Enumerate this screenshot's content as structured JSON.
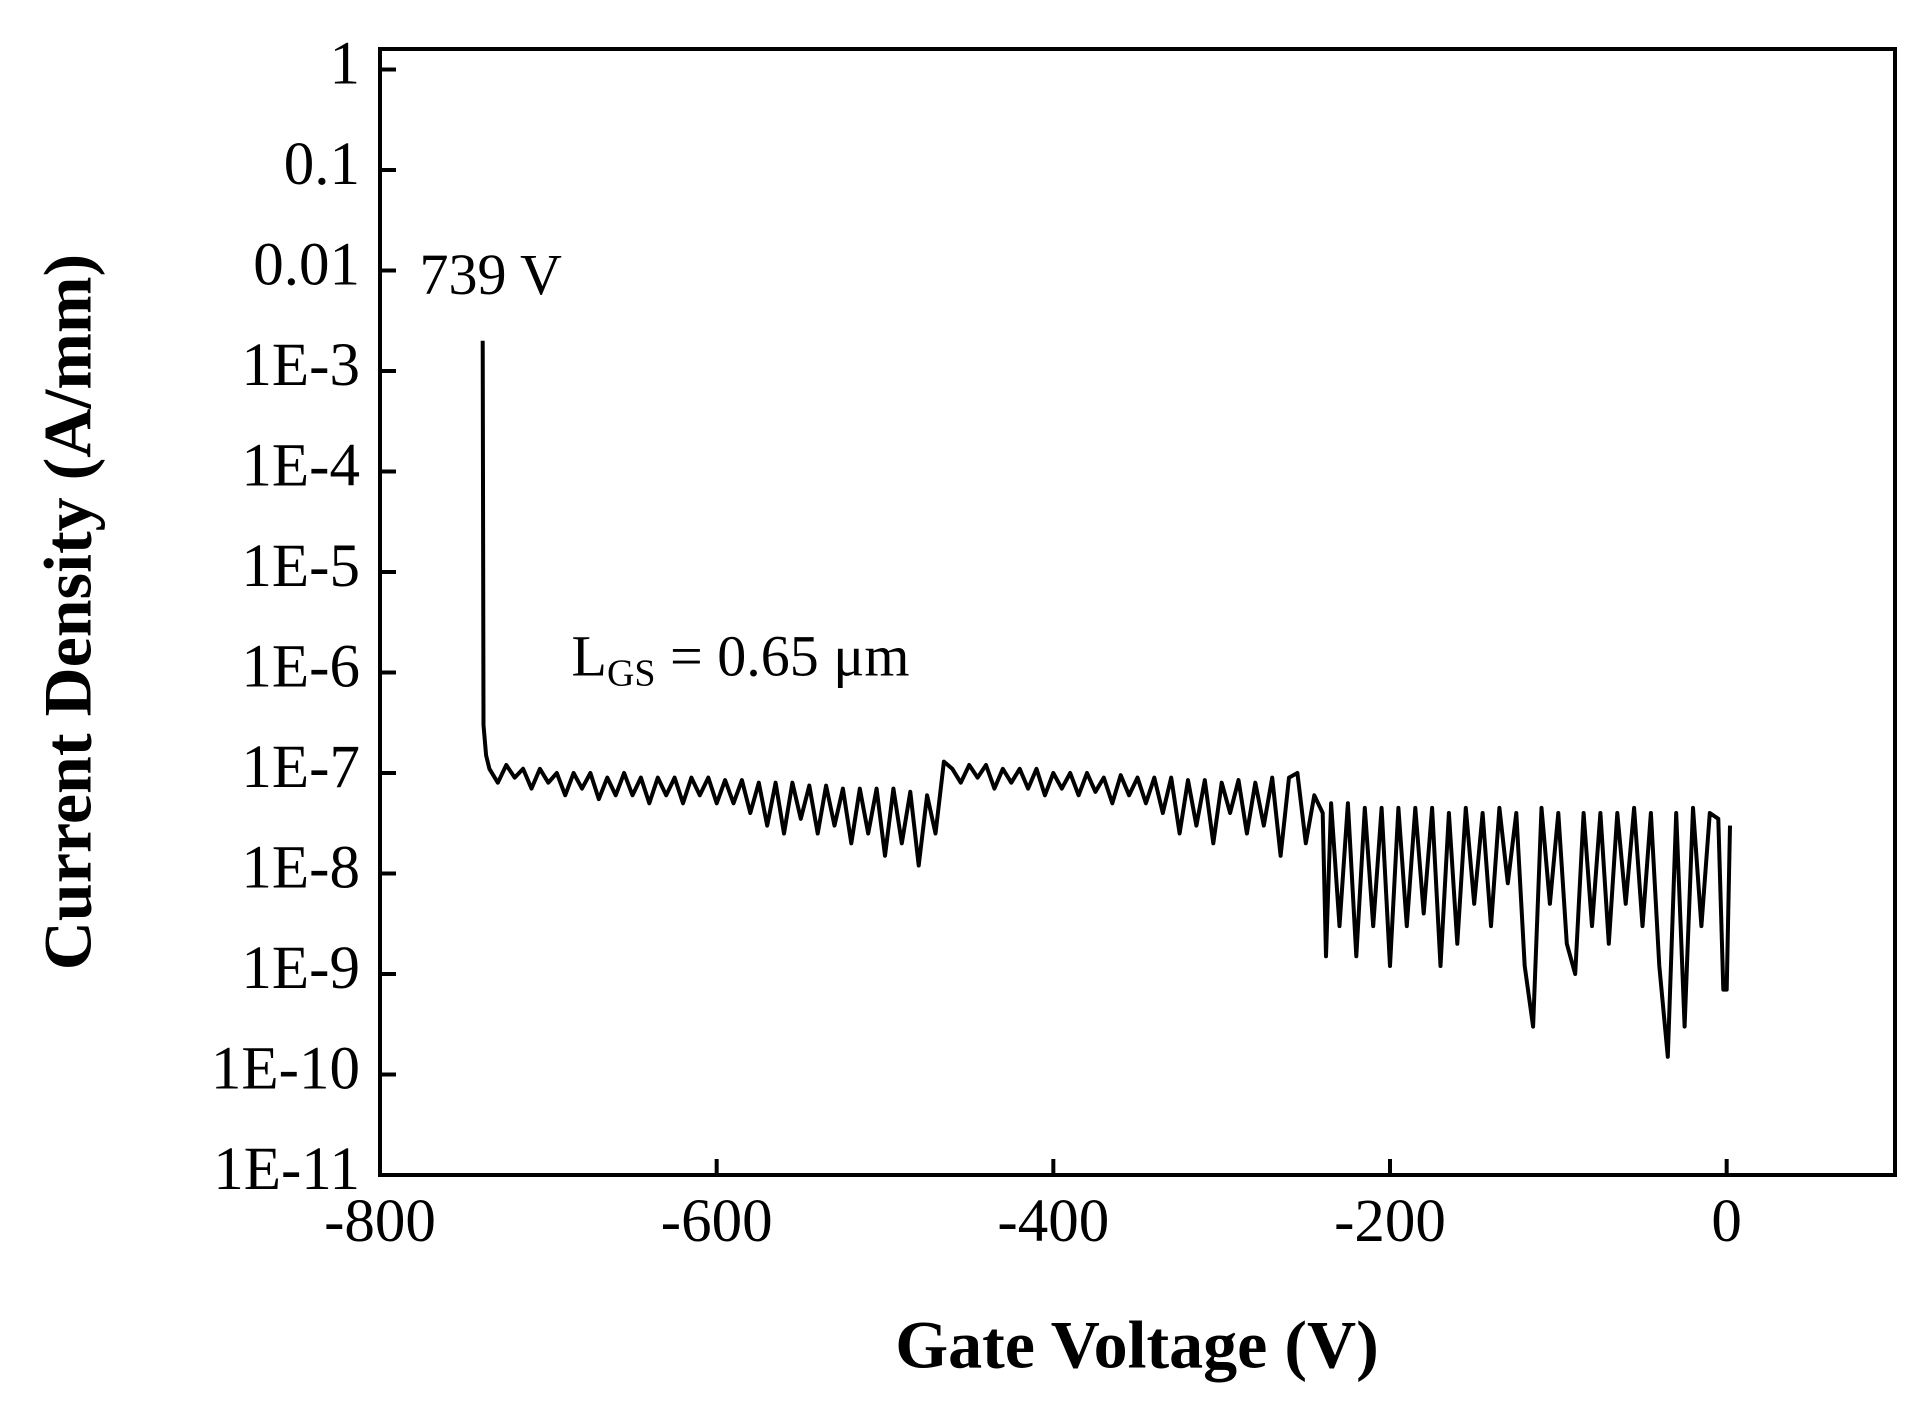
{
  "chart_data": {
    "type": "line",
    "log_y": true,
    "xlabel": "Gate Voltage (V)",
    "ylabel": "Current Density (A/mm)",
    "xlim": [
      -800,
      100
    ],
    "ylim": [
      1e-11,
      1.6
    ],
    "xticks": [
      -800,
      -600,
      -400,
      -200,
      0
    ],
    "yticks": [
      1,
      0.1,
      0.01,
      {
        "value": 0.001,
        "label": "1E-3"
      },
      {
        "value": 0.0001,
        "label": "1E-4"
      },
      {
        "value": 1e-05,
        "label": "1E-5"
      },
      {
        "value": 1e-06,
        "label": "1E-6"
      },
      {
        "value": 1e-07,
        "label": "1E-7"
      },
      {
        "value": 1e-08,
        "label": "1E-8"
      },
      {
        "value": 1e-09,
        "label": "1E-9"
      },
      {
        "value": 1e-10,
        "label": "1E-10"
      },
      {
        "value": 1e-11,
        "label": "1E-11"
      }
    ],
    "annotations": [
      {
        "text": "739 V",
        "x": -739,
        "y": 0.01
      },
      {
        "text": "L",
        "sub": "GS",
        "rest": " = 0.65 μm",
        "x": -710,
        "y": 1e-06
      }
    ],
    "x": [
      -739,
      -738.5,
      -737,
      -735,
      -730,
      -725,
      -720,
      -715,
      -710,
      -705,
      -700,
      -695,
      -690,
      -685,
      -680,
      -675,
      -670,
      -665,
      -660,
      -655,
      -650,
      -645,
      -640,
      -635,
      -630,
      -625,
      -620,
      -615,
      -610,
      -605,
      -600,
      -595,
      -590,
      -585,
      -580,
      -575,
      -570,
      -565,
      -560,
      -555,
      -550,
      -545,
      -540,
      -535,
      -530,
      -525,
      -520,
      -515,
      -510,
      -505,
      -500,
      -495,
      -490,
      -485,
      -480,
      -475,
      -470,
      -465,
      -460,
      -455,
      -450,
      -445,
      -440,
      -435,
      -430,
      -425,
      -420,
      -415,
      -410,
      -405,
      -400,
      -395,
      -390,
      -385,
      -380,
      -375,
      -370,
      -365,
      -360,
      -355,
      -350,
      -345,
      -340,
      -335,
      -330,
      -325,
      -320,
      -315,
      -310,
      -305,
      -300,
      -295,
      -290,
      -285,
      -280,
      -275,
      -270,
      -265,
      -260,
      -255,
      -250,
      -245,
      -240,
      -238,
      -235,
      -230,
      -225,
      -220,
      -215,
      -210,
      -205,
      -200,
      -195,
      -190,
      -185,
      -180,
      -175,
      -170,
      -165,
      -160,
      -155,
      -150,
      -145,
      -140,
      -135,
      -130,
      -125,
      -120,
      -115,
      -110,
      -105,
      -100,
      -95,
      -90,
      -85,
      -80,
      -75,
      -70,
      -65,
      -60,
      -55,
      -50,
      -45,
      -40,
      -35,
      -30,
      -25,
      -20,
      -15,
      -10,
      -5,
      -2,
      0,
      2
    ],
    "series": [
      {
        "name": "Current Density",
        "color": "#000000",
        "values": [
          0.002,
          3e-07,
          1.5e-07,
          1.1e-07,
          8e-08,
          1.2e-07,
          9e-08,
          1.1e-07,
          7e-08,
          1.1e-07,
          8e-08,
          1e-07,
          6e-08,
          1e-07,
          7e-08,
          1e-07,
          5.5e-08,
          9e-08,
          6e-08,
          1e-07,
          6e-08,
          9e-08,
          5e-08,
          9e-08,
          6e-08,
          9e-08,
          5e-08,
          9e-08,
          6e-08,
          9e-08,
          5e-08,
          8.5e-08,
          5e-08,
          8.5e-08,
          4e-08,
          8e-08,
          3e-08,
          8e-08,
          2.5e-08,
          8e-08,
          3.5e-08,
          7.5e-08,
          2.5e-08,
          7.5e-08,
          3e-08,
          7e-08,
          2e-08,
          7e-08,
          2.5e-08,
          7e-08,
          1.5e-08,
          7e-08,
          2e-08,
          6.5e-08,
          1.2e-08,
          6e-08,
          2.5e-08,
          1.3e-07,
          1.1e-07,
          8e-08,
          1.2e-07,
          9e-08,
          1.2e-07,
          7e-08,
          1.1e-07,
          8e-08,
          1.1e-07,
          7e-08,
          1.1e-07,
          6e-08,
          1e-07,
          7e-08,
          1e-07,
          6e-08,
          1e-07,
          6.5e-08,
          9e-08,
          5e-08,
          9.5e-08,
          6e-08,
          9e-08,
          5e-08,
          9e-08,
          4e-08,
          9e-08,
          2.5e-08,
          8.5e-08,
          3e-08,
          8.5e-08,
          2e-08,
          8e-08,
          4e-08,
          8.5e-08,
          2.5e-08,
          8e-08,
          3e-08,
          9e-08,
          1.5e-08,
          9e-08,
          1e-07,
          2e-08,
          6e-08,
          4e-08,
          1.5e-09,
          5e-08,
          3e-09,
          5e-08,
          1.5e-09,
          4.5e-08,
          3e-09,
          4.5e-08,
          1.2e-09,
          4.5e-08,
          3e-09,
          4.5e-08,
          4e-09,
          4.5e-08,
          1.2e-09,
          4e-08,
          2e-09,
          4.5e-08,
          5e-09,
          4e-08,
          3e-09,
          4.5e-08,
          8e-09,
          4e-08,
          1.2e-09,
          3e-10,
          4.5e-08,
          5e-09,
          4e-08,
          2e-09,
          1e-09,
          4e-08,
          3e-09,
          4e-08,
          2e-09,
          4e-08,
          5e-09,
          4.5e-08,
          3e-09,
          4e-08,
          1.2e-09,
          1.5e-10,
          4e-08,
          3e-10,
          4.5e-08,
          3e-09,
          4e-08,
          3.5e-08,
          7e-10,
          7e-10,
          3e-08
        ]
      }
    ]
  }
}
